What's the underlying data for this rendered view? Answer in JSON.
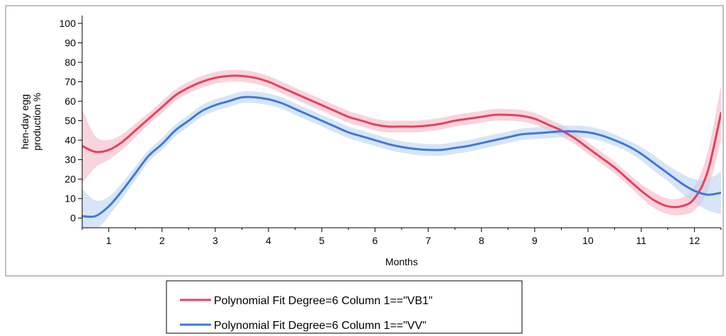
{
  "chart_data": {
    "type": "line",
    "title": "",
    "xlabel": "Months",
    "ylabel_lines": [
      "hen-day egg",
      "production %"
    ],
    "xlim": [
      0.5,
      12.5
    ],
    "ylim": [
      -5,
      104
    ],
    "x_ticks": [
      1,
      2,
      3,
      4,
      5,
      6,
      7,
      8,
      9,
      10,
      11,
      12
    ],
    "x_tick_labels": [
      "1",
      "2",
      "3",
      "4",
      "5",
      "6",
      "7",
      "8",
      "9",
      "10",
      "11",
      "12"
    ],
    "y_ticks": [
      0,
      10,
      20,
      30,
      40,
      50,
      60,
      70,
      80,
      90,
      100
    ],
    "y_tick_labels": [
      "0",
      "10",
      "20",
      "30",
      "40",
      "50",
      "60",
      "70",
      "80",
      "90",
      "100"
    ],
    "grid": false,
    "legend_position": "bottom-center",
    "x": [
      0.5,
      0.75,
      1,
      1.25,
      1.5,
      1.75,
      2,
      2.25,
      2.5,
      2.75,
      3,
      3.25,
      3.5,
      3.75,
      4,
      4.25,
      4.5,
      4.75,
      5,
      5.25,
      5.5,
      5.75,
      6,
      6.25,
      6.5,
      6.75,
      7,
      7.25,
      7.5,
      7.75,
      8,
      8.25,
      8.5,
      8.75,
      9,
      9.25,
      9.5,
      9.75,
      10,
      10.25,
      10.5,
      10.75,
      11,
      11.25,
      11.5,
      11.75,
      12,
      12.25,
      12.5
    ],
    "series": [
      {
        "name": "Polynomial Fit Degree=6 Column 1==\"VB1\"",
        "color": "#e8405f",
        "band_color": "#f4b8c4",
        "values": [
          37,
          34,
          35,
          39,
          45,
          51,
          57,
          63,
          67,
          70,
          72,
          73,
          73,
          72,
          70,
          67,
          64,
          61,
          58,
          55,
          52,
          50,
          48,
          47,
          47,
          47,
          47.5,
          48.5,
          50,
          51,
          52,
          53,
          53,
          52.5,
          51,
          48,
          45,
          41,
          36,
          31,
          26,
          20,
          14,
          9,
          6,
          6,
          10,
          24,
          54
        ],
        "band_half_width": [
          19,
          8,
          5,
          4,
          3.5,
          3,
          3,
          3,
          3,
          3,
          3,
          3,
          3,
          3,
          3,
          3,
          3,
          3,
          3,
          3,
          3,
          3,
          3,
          3,
          3,
          3,
          3,
          3,
          3,
          3,
          3,
          3,
          3,
          3,
          3,
          3,
          3,
          3,
          3,
          3,
          3,
          3,
          3.5,
          4,
          4,
          4.5,
          6,
          10,
          14
        ]
      },
      {
        "name": "Polynomial Fit Degree=6 Column 1==\"VV\"",
        "color": "#3f79d8",
        "band_color": "#bcd3f0",
        "values": [
          1,
          1,
          6,
          14,
          23,
          32,
          38,
          45,
          50,
          55,
          58,
          60,
          62,
          62,
          61,
          59,
          56,
          53,
          50,
          47,
          44,
          42,
          40,
          38,
          36.5,
          35.5,
          35,
          35,
          36,
          37,
          38.5,
          40,
          41.5,
          43,
          43.5,
          44,
          44.5,
          44.5,
          44,
          42.5,
          40,
          37,
          33,
          28,
          23,
          18,
          14,
          12,
          13
        ],
        "band_half_width": [
          14,
          8,
          5,
          4,
          3.5,
          3,
          3,
          3,
          3,
          3,
          3,
          3,
          3,
          3,
          3,
          3,
          3,
          3,
          3,
          3,
          3,
          3,
          3,
          3,
          3,
          3,
          3,
          3,
          3,
          3,
          3,
          3,
          3,
          3,
          3,
          3,
          3,
          3,
          3,
          3,
          3,
          3,
          3.5,
          4,
          4,
          5,
          6,
          8,
          11
        ]
      }
    ]
  }
}
